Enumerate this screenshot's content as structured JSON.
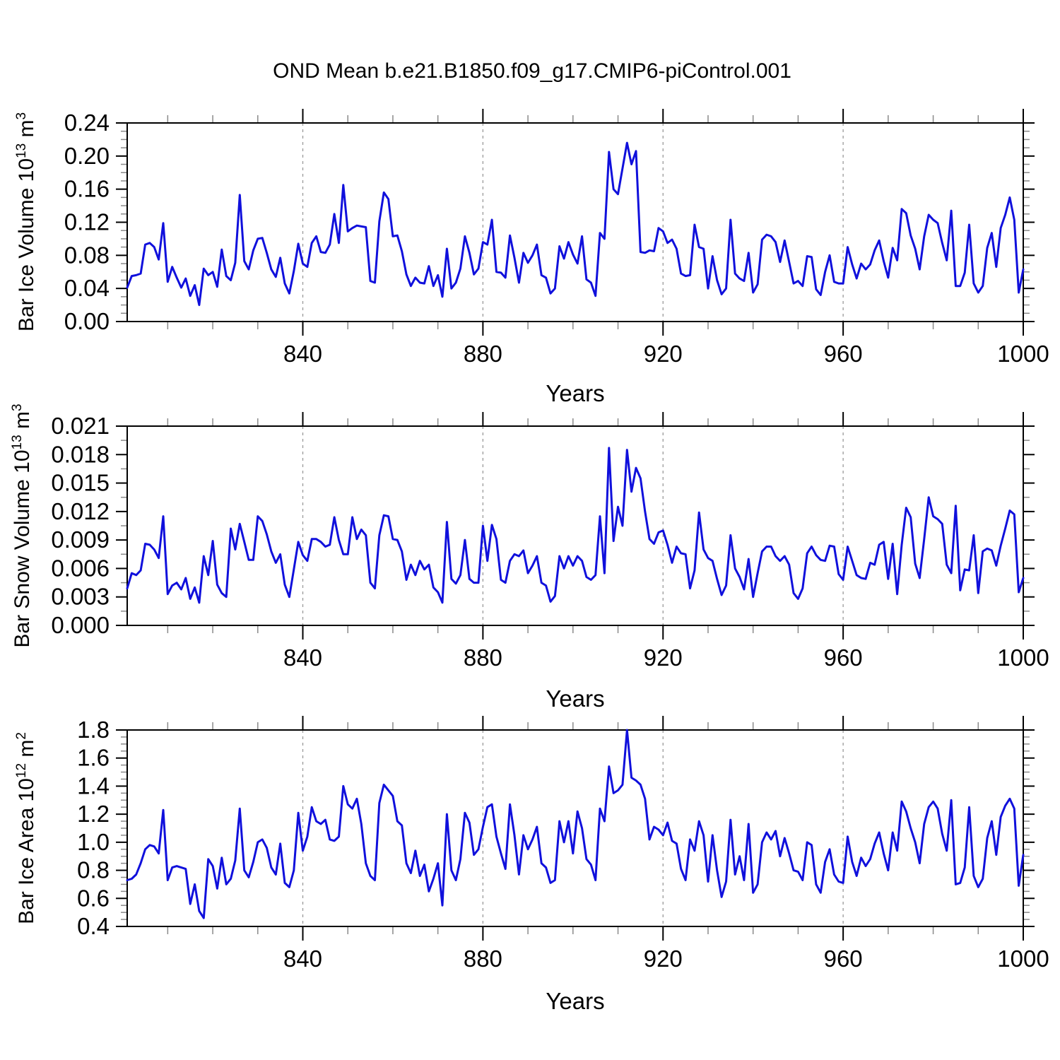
{
  "title": "OND Mean b.e21.B1850.f09_g17.CMIP6-piControl.001",
  "colors": {
    "line": "#1010dc",
    "axis": "#000000",
    "minor_tick": "#8a8a8a",
    "gridline": "#999999",
    "background": "#ffffff"
  },
  "xaxis": {
    "label": "Years",
    "range": [
      801,
      1000
    ],
    "tick_years": [
      840,
      880,
      920,
      960,
      1000
    ],
    "tick_labels": [
      "840",
      "880",
      "920",
      "960",
      "1000"
    ],
    "minor_step": 10,
    "gridline_years": [
      840,
      880,
      920,
      960
    ]
  },
  "chart_data": [
    {
      "type": "line",
      "name": "ice-volume",
      "ylabel": {
        "text1": "Bar Ice Volume 10",
        "sup1": "13",
        "text2": " m",
        "sup2": "3"
      },
      "ylim": [
        0,
        0.24
      ],
      "ytick_values": [
        0.0,
        0.04,
        0.08,
        0.12,
        0.16,
        0.2,
        0.24
      ],
      "ytick_labels": [
        "0.00",
        "0.04",
        "0.08",
        "0.12",
        "0.16",
        "0.20",
        "0.24"
      ],
      "y_minor_step": 0.01,
      "x_start": 801,
      "x_step": 1,
      "values": [
        0.041,
        0.055,
        0.056,
        0.058,
        0.093,
        0.095,
        0.09,
        0.075,
        0.119,
        0.048,
        0.066,
        0.053,
        0.041,
        0.052,
        0.031,
        0.044,
        0.02,
        0.064,
        0.056,
        0.06,
        0.042,
        0.087,
        0.055,
        0.05,
        0.071,
        0.153,
        0.073,
        0.063,
        0.086,
        0.1,
        0.101,
        0.083,
        0.063,
        0.054,
        0.077,
        0.046,
        0.034,
        0.061,
        0.094,
        0.07,
        0.066,
        0.095,
        0.103,
        0.084,
        0.083,
        0.093,
        0.13,
        0.095,
        0.165,
        0.109,
        0.113,
        0.116,
        0.115,
        0.114,
        0.049,
        0.047,
        0.121,
        0.156,
        0.148,
        0.103,
        0.104,
        0.085,
        0.057,
        0.043,
        0.053,
        0.047,
        0.046,
        0.067,
        0.043,
        0.056,
        0.03,
        0.088,
        0.04,
        0.047,
        0.064,
        0.103,
        0.083,
        0.057,
        0.064,
        0.096,
        0.093,
        0.123,
        0.06,
        0.059,
        0.053,
        0.104,
        0.077,
        0.047,
        0.083,
        0.071,
        0.08,
        0.093,
        0.056,
        0.053,
        0.034,
        0.04,
        0.091,
        0.076,
        0.096,
        0.081,
        0.07,
        0.103,
        0.051,
        0.047,
        0.031,
        0.107,
        0.1,
        0.205,
        0.16,
        0.154,
        0.185,
        0.216,
        0.19,
        0.206,
        0.084,
        0.083,
        0.086,
        0.085,
        0.113,
        0.109,
        0.095,
        0.099,
        0.088,
        0.058,
        0.055,
        0.056,
        0.117,
        0.09,
        0.088,
        0.04,
        0.079,
        0.05,
        0.033,
        0.04,
        0.123,
        0.058,
        0.052,
        0.049,
        0.083,
        0.035,
        0.045,
        0.099,
        0.105,
        0.103,
        0.096,
        0.072,
        0.098,
        0.072,
        0.046,
        0.049,
        0.043,
        0.079,
        0.078,
        0.039,
        0.032,
        0.06,
        0.08,
        0.048,
        0.046,
        0.046,
        0.09,
        0.069,
        0.052,
        0.07,
        0.063,
        0.069,
        0.086,
        0.098,
        0.073,
        0.053,
        0.089,
        0.074,
        0.136,
        0.131,
        0.104,
        0.088,
        0.063,
        0.103,
        0.129,
        0.123,
        0.119,
        0.095,
        0.074,
        0.134,
        0.043,
        0.043,
        0.059,
        0.117,
        0.046,
        0.035,
        0.043,
        0.089,
        0.107,
        0.066,
        0.113,
        0.129,
        0.15,
        0.123,
        0.035,
        0.063
      ]
    },
    {
      "type": "line",
      "name": "snow-volume",
      "ylabel": {
        "text1": "Bar Snow Volume 10",
        "sup1": "13",
        "text2": " m",
        "sup2": "3"
      },
      "ylim": [
        0,
        0.021
      ],
      "ytick_values": [
        0.0,
        0.003,
        0.006,
        0.009,
        0.012,
        0.015,
        0.018,
        0.021
      ],
      "ytick_labels": [
        "0.000",
        "0.003",
        "0.006",
        "0.009",
        "0.012",
        "0.015",
        "0.018",
        "0.021"
      ],
      "y_minor_step": 0.0015,
      "x_start": 801,
      "x_step": 1,
      "values": [
        0.0039,
        0.0055,
        0.0053,
        0.0058,
        0.0086,
        0.0085,
        0.008,
        0.0071,
        0.0115,
        0.0033,
        0.0042,
        0.0045,
        0.0038,
        0.005,
        0.0028,
        0.004,
        0.0024,
        0.0073,
        0.0053,
        0.0089,
        0.0043,
        0.0034,
        0.003,
        0.0102,
        0.008,
        0.0107,
        0.0088,
        0.0069,
        0.0069,
        0.0115,
        0.011,
        0.0096,
        0.0078,
        0.0066,
        0.0075,
        0.0043,
        0.003,
        0.0059,
        0.0088,
        0.0074,
        0.0068,
        0.0091,
        0.0091,
        0.0088,
        0.0083,
        0.0085,
        0.0114,
        0.009,
        0.0075,
        0.0075,
        0.0114,
        0.0091,
        0.0101,
        0.0095,
        0.0045,
        0.0039,
        0.0095,
        0.0116,
        0.0115,
        0.0091,
        0.009,
        0.0078,
        0.0048,
        0.0064,
        0.0053,
        0.0068,
        0.0059,
        0.0064,
        0.004,
        0.0035,
        0.0024,
        0.0109,
        0.0049,
        0.0044,
        0.0053,
        0.009,
        0.0049,
        0.0045,
        0.0045,
        0.0105,
        0.0068,
        0.0106,
        0.0091,
        0.0048,
        0.0045,
        0.0068,
        0.0075,
        0.0073,
        0.0079,
        0.0055,
        0.0063,
        0.0073,
        0.0045,
        0.0042,
        0.0025,
        0.0031,
        0.0073,
        0.006,
        0.0073,
        0.0063,
        0.0073,
        0.0068,
        0.0051,
        0.0048,
        0.0053,
        0.0115,
        0.0055,
        0.0187,
        0.0089,
        0.0125,
        0.0105,
        0.0185,
        0.0141,
        0.0166,
        0.0155,
        0.012,
        0.0091,
        0.0086,
        0.0098,
        0.01,
        0.0085,
        0.0066,
        0.0083,
        0.0076,
        0.0075,
        0.0039,
        0.0058,
        0.0119,
        0.008,
        0.0071,
        0.0068,
        0.0049,
        0.0032,
        0.0042,
        0.0095,
        0.006,
        0.0051,
        0.0038,
        0.007,
        0.003,
        0.0055,
        0.0078,
        0.0083,
        0.0083,
        0.0073,
        0.0068,
        0.0073,
        0.0064,
        0.0034,
        0.0028,
        0.0039,
        0.0076,
        0.0083,
        0.0074,
        0.0069,
        0.0068,
        0.0084,
        0.0083,
        0.0054,
        0.0048,
        0.0083,
        0.0068,
        0.0053,
        0.005,
        0.0049,
        0.0066,
        0.0064,
        0.0085,
        0.0088,
        0.0049,
        0.0086,
        0.0033,
        0.0085,
        0.0124,
        0.0114,
        0.0065,
        0.005,
        0.0091,
        0.0135,
        0.0115,
        0.0112,
        0.0107,
        0.0064,
        0.0055,
        0.0126,
        0.0037,
        0.0059,
        0.0058,
        0.0095,
        0.0034,
        0.0078,
        0.0081,
        0.0079,
        0.0063,
        0.0084,
        0.0102,
        0.0121,
        0.0117,
        0.0035,
        0.005
      ]
    },
    {
      "type": "line",
      "name": "ice-area",
      "ylabel": {
        "text1": "Bar Ice Area 10",
        "sup1": "12",
        "text2": " m",
        "sup2": "2"
      },
      "ylim": [
        0.4,
        1.8
      ],
      "ytick_values": [
        0.4,
        0.6,
        0.8,
        1.0,
        1.2,
        1.4,
        1.6,
        1.8
      ],
      "ytick_labels": [
        "0.4",
        "0.6",
        "0.8",
        "1.0",
        "1.2",
        "1.4",
        "1.6",
        "1.8"
      ],
      "y_minor_step": 0.05,
      "x_start": 801,
      "x_step": 1,
      "values": [
        0.73,
        0.74,
        0.77,
        0.85,
        0.95,
        0.98,
        0.97,
        0.92,
        1.23,
        0.73,
        0.82,
        0.83,
        0.82,
        0.81,
        0.56,
        0.7,
        0.51,
        0.46,
        0.88,
        0.83,
        0.67,
        0.89,
        0.7,
        0.74,
        0.87,
        1.24,
        0.8,
        0.75,
        0.86,
        1.0,
        1.02,
        0.96,
        0.82,
        0.77,
        0.99,
        0.71,
        0.68,
        0.8,
        1.21,
        0.94,
        1.04,
        1.25,
        1.15,
        1.13,
        1.16,
        1.02,
        1.01,
        1.04,
        1.4,
        1.27,
        1.24,
        1.31,
        1.13,
        0.85,
        0.76,
        0.73,
        1.28,
        1.41,
        1.37,
        1.33,
        1.15,
        1.12,
        0.85,
        0.78,
        0.94,
        0.76,
        0.84,
        0.65,
        0.74,
        0.85,
        0.55,
        1.2,
        0.8,
        0.73,
        0.88,
        1.21,
        1.14,
        0.91,
        0.95,
        1.11,
        1.25,
        1.27,
        1.04,
        0.92,
        0.81,
        1.27,
        1.05,
        0.77,
        1.05,
        0.95,
        1.02,
        1.11,
        0.85,
        0.82,
        0.71,
        0.73,
        1.15,
        1.0,
        1.15,
        0.92,
        1.22,
        1.1,
        0.88,
        0.84,
        0.73,
        1.24,
        1.15,
        1.54,
        1.35,
        1.37,
        1.41,
        1.8,
        1.46,
        1.44,
        1.41,
        1.31,
        1.02,
        1.11,
        1.09,
        1.05,
        1.14,
        1.01,
        0.99,
        0.81,
        0.73,
        1.02,
        0.94,
        1.15,
        1.05,
        0.72,
        1.05,
        0.8,
        0.61,
        0.72,
        1.16,
        0.77,
        0.9,
        0.73,
        1.13,
        0.64,
        0.7,
        1.0,
        1.07,
        1.02,
        1.08,
        0.9,
        1.03,
        0.92,
        0.8,
        0.79,
        0.73,
        1.0,
        0.98,
        0.7,
        0.64,
        0.86,
        0.95,
        0.77,
        0.72,
        0.71,
        1.04,
        0.86,
        0.76,
        0.89,
        0.83,
        0.88,
        0.99,
        1.07,
        0.92,
        0.8,
        1.07,
        0.94,
        1.29,
        1.22,
        1.1,
        1.0,
        0.85,
        1.13,
        1.25,
        1.29,
        1.24,
        1.06,
        0.94,
        1.3,
        0.7,
        0.71,
        0.82,
        1.25,
        0.76,
        0.68,
        0.74,
        1.03,
        1.15,
        0.91,
        1.18,
        1.26,
        1.31,
        1.24,
        0.69,
        0.91
      ]
    }
  ]
}
